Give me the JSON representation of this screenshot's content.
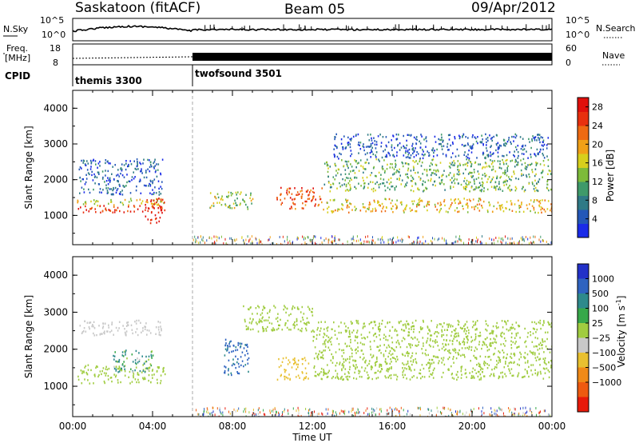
{
  "header": {
    "station": "Saskatoon (fitACF)",
    "beam": "Beam 05",
    "date": "09/Apr/2012"
  },
  "top_panels": {
    "nsky_label": "N.Sky",
    "nsky_ticks": [
      "10^5",
      "10^0"
    ],
    "nsearch_label": "N.Search",
    "nsearch_ticks": [
      "10^5",
      "10^0"
    ],
    "freq_label_1": "Freq.",
    "freq_label_2": "[MHz]",
    "freq_ticks": [
      "18",
      "8"
    ],
    "nave_label": "Nave",
    "nave_ticks": [
      "60",
      "0"
    ],
    "cpid_label": "CPID",
    "cpid_programs": [
      {
        "name": "themis 3300",
        "start_hour": 0,
        "end_hour": 6
      },
      {
        "name": "twofsound 3501",
        "start_hour": 6,
        "end_hour": 24
      }
    ]
  },
  "chart_data": [
    {
      "type": "heatmap",
      "title": "Power",
      "ylabel": "Slant Range [km]",
      "xlabel": "",
      "xlim": [
        0,
        24
      ],
      "ylim": [
        180,
        4500
      ],
      "y_ticks": [
        "1000",
        "2000",
        "3000",
        "4000"
      ],
      "colorbar": {
        "label": "Power [dB]",
        "ticks": [
          "4",
          "8",
          "12",
          "16",
          "20",
          "24",
          "28"
        ],
        "range": [
          0,
          30
        ],
        "colors": [
          "#1a2be8",
          "#2357b8",
          "#2f7a86",
          "#3f9a6a",
          "#7dbb3a",
          "#d7cf1c",
          "#f0a018",
          "#ee6a12",
          "#e8300e",
          "#e0100c"
        ]
      },
      "scatter_bands": [
        {
          "x": [
            0.2,
            4.6
          ],
          "y": [
            1100,
            1300
          ],
          "power": 26
        },
        {
          "x": [
            0.2,
            4.6
          ],
          "y": [
            1300,
            1500
          ],
          "power": 16
        },
        {
          "x": [
            0.3,
            4.5
          ],
          "y": [
            1600,
            2600
          ],
          "power": 5
        },
        {
          "x": [
            3.6,
            4.6
          ],
          "y": [
            800,
            1500
          ],
          "power": 28
        },
        {
          "x": [
            6.8,
            9.0
          ],
          "y": [
            1200,
            1700
          ],
          "power": 14
        },
        {
          "x": [
            10.2,
            12.5
          ],
          "y": [
            1200,
            1800
          ],
          "power": 24
        },
        {
          "x": [
            12.5,
            24.0
          ],
          "y": [
            1100,
            1500
          ],
          "power": 18
        },
        {
          "x": [
            12.5,
            24.0
          ],
          "y": [
            1700,
            2600
          ],
          "power": 12
        },
        {
          "x": [
            13.0,
            23.8
          ],
          "y": [
            2600,
            3300
          ],
          "power": 5
        }
      ]
    },
    {
      "type": "heatmap",
      "title": "Velocity",
      "ylabel": "Slant Range [km]",
      "xlabel": "Time UT",
      "xlim": [
        0,
        24
      ],
      "ylim": [
        180,
        4500
      ],
      "x_ticks": [
        "00:00",
        "04:00",
        "08:00",
        "12:00",
        "16:00",
        "20:00",
        "00:00"
      ],
      "y_ticks": [
        "1000",
        "2000",
        "3000",
        "4000"
      ],
      "colorbar": {
        "label_main": "Velocity  [m s",
        "label_sup": "-1",
        "label_end": "]",
        "ticks": [
          "1000",
          "500",
          "100",
          "25",
          "−25",
          "−100",
          "−500",
          "−1000"
        ],
        "colors": [
          "#2231c8",
          "#2f63c0",
          "#2e8a8c",
          "#37a84a",
          "#a0cc40",
          "#c8c8c8",
          "#e8c030",
          "#f08a18",
          "#ee5a10",
          "#e81a0a"
        ]
      },
      "scatter_bands": [
        {
          "x": [
            0.2,
            4.6
          ],
          "y": [
            1100,
            1600
          ],
          "velocity": 0
        },
        {
          "x": [
            0.3,
            4.5
          ],
          "y": [
            2400,
            2800
          ],
          "velocity": -50
        },
        {
          "x": [
            2.0,
            4.0
          ],
          "y": [
            1400,
            2000
          ],
          "velocity": 150
        },
        {
          "x": [
            7.5,
            8.8
          ],
          "y": [
            1300,
            2300
          ],
          "velocity": 600
        },
        {
          "x": [
            10.2,
            11.8
          ],
          "y": [
            1200,
            1800
          ],
          "velocity": -300
        },
        {
          "x": [
            12.0,
            24.0
          ],
          "y": [
            1200,
            2800
          ],
          "velocity": 0
        },
        {
          "x": [
            8.5,
            12.0
          ],
          "y": [
            2500,
            3200
          ],
          "velocity": 0
        }
      ]
    }
  ]
}
